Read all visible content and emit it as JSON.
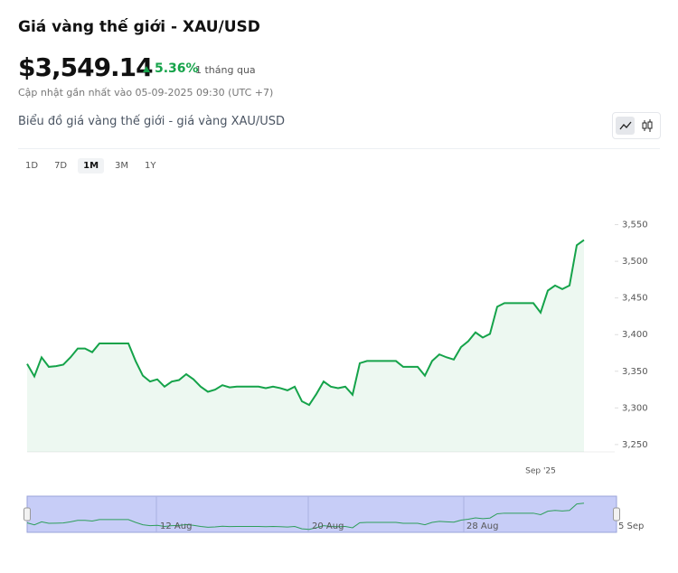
{
  "header": {
    "title": "Giá vàng thế giới - XAU/USD",
    "price": "$3,549.14",
    "change": "5.36%",
    "change_period": "1 tháng qua",
    "updated": "Cập nhật gần nhất vào 05-09-2025 09:30 (UTC +7)"
  },
  "chart_title": "Biểu đồ giá vàng thế giới - giá vàng XAU/USD",
  "ranges": [
    "1D",
    "7D",
    "1M",
    "3M",
    "1Y"
  ],
  "navigator_labels": [
    "12 Aug",
    "20 Aug",
    "28 Aug",
    "5 Sep"
  ],
  "chart_data": {
    "type": "area",
    "color": "#15a34a",
    "categories": [
      null,
      null,
      null,
      null,
      null,
      null,
      null,
      null,
      null,
      null,
      null,
      null,
      null,
      null,
      null,
      null,
      null,
      null,
      null,
      null,
      null,
      null,
      null,
      null,
      null,
      null,
      null,
      null,
      null,
      null,
      null,
      null,
      null,
      null,
      null,
      null,
      null,
      null,
      null,
      null,
      null,
      null,
      null,
      null,
      null,
      null,
      null,
      null,
      null,
      null,
      null,
      null,
      null,
      null,
      null,
      null,
      null,
      null,
      null,
      null,
      null,
      null,
      null,
      null,
      null,
      null,
      null,
      null,
      null,
      null,
      null,
      "Sep '25",
      null,
      null,
      null,
      null,
      null,
      null
    ],
    "values": [
      3360,
      3343,
      3369,
      3356,
      3357,
      3359,
      3369,
      3381,
      3381,
      3376,
      3388,
      3388,
      3388,
      3388,
      3388,
      3364,
      3344,
      3336,
      3339,
      3329,
      3336,
      3338,
      3346,
      3339,
      3329,
      3322,
      3325,
      3331,
      3328,
      3329,
      3329,
      3329,
      3329,
      3327,
      3329,
      3327,
      3324,
      3329,
      3309,
      3304,
      3319,
      3336,
      3329,
      3327,
      3329,
      3318,
      3361,
      3364,
      3364,
      3364,
      3364,
      3364,
      3356,
      3356,
      3356,
      3344,
      3364,
      3373,
      3369,
      3366,
      3383,
      3391,
      3403,
      3396,
      3401,
      3438,
      3443,
      3443,
      3443,
      3443,
      3443,
      3430,
      3460,
      3467,
      3462,
      3467,
      3522,
      3529
    ],
    "ylim": [
      3240,
      3600
    ],
    "yticks": [
      {
        "value": 3250,
        "label": "3,250"
      },
      {
        "value": 3300,
        "label": "3,300"
      },
      {
        "value": 3350,
        "label": "3,350"
      },
      {
        "value": 3400,
        "label": "3,400"
      },
      {
        "value": 3450,
        "label": "3,450"
      },
      {
        "value": 3500,
        "label": "3,500"
      },
      {
        "value": 3550,
        "label": "3,550"
      }
    ]
  }
}
